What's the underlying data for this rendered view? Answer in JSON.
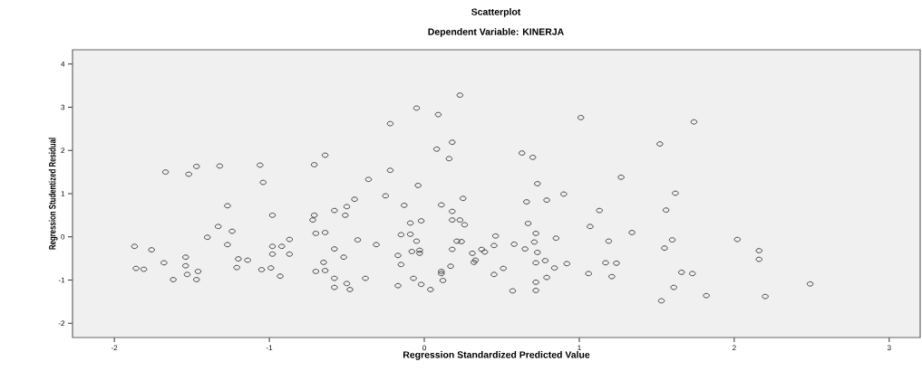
{
  "chart_data": {
    "type": "scatter",
    "title": "Scatterplot",
    "subtitle": "Dependent Variable: KINERJA",
    "xlabel": "Regression Standardized Predicted Value",
    "ylabel": "Regression Studentized Residual",
    "xlim": [
      -2.27,
      3.2
    ],
    "ylim": [
      -2.33,
      4.33
    ],
    "xticks": [
      -2,
      -1,
      0,
      1,
      2,
      3
    ],
    "yticks": [
      -2,
      -1,
      0,
      1,
      2,
      3,
      4
    ],
    "marker": "circle",
    "series": [
      {
        "color": "#333333",
        "x": [
          -1.67,
          -1.52,
          -1.47,
          -1.32,
          -1.06,
          -1.04,
          -1.27,
          -0.98,
          -1.33,
          -1.24,
          -1.4,
          -1.27,
          -1.87,
          -1.76,
          -0.98,
          -0.92,
          -0.87,
          -0.98,
          -0.87,
          -1.54,
          -1.2,
          -1.14,
          -1.68,
          -1.54,
          -1.86,
          -1.81,
          -1.21,
          -1.05,
          -0.99,
          -1.53,
          -1.46,
          -1.62,
          -1.47,
          -0.93,
          0.23,
          -0.05,
          0.09,
          -0.22,
          0.18,
          0.08,
          0.16,
          -0.64,
          -0.71,
          -0.22,
          -0.36,
          -0.04,
          0.63,
          0.7,
          0.73,
          -0.25,
          0.25,
          0.9,
          0.66,
          0.79,
          -0.45,
          -0.58,
          -0.5,
          -0.51,
          -0.71,
          -0.72,
          -0.13,
          0.11,
          0.18,
          0.18,
          0.23,
          0.26,
          -0.02,
          -0.09,
          0.67,
          -0.7,
          -0.64,
          -0.15,
          -0.09,
          0.72,
          -0.43,
          -0.31,
          -0.05,
          0.21,
          0.24,
          0.46,
          0.85,
          -0.58,
          -0.52,
          -0.17,
          -0.08,
          -0.03,
          -0.03,
          0.18,
          0.31,
          0.39,
          0.37,
          0.45,
          0.58,
          0.65,
          0.71,
          0.73,
          0.33,
          0.32,
          -0.65,
          -0.7,
          -0.64,
          -0.15,
          0.17,
          0.11,
          0.11,
          0.72,
          0.78,
          0.84,
          0.92,
          0.51,
          0.45,
          0.79,
          0.72,
          -0.58,
          -0.5,
          -0.58,
          -0.48,
          -0.38,
          -0.07,
          0.12,
          -0.17,
          -0.02,
          0.04,
          0.57,
          0.72,
          1.01,
          1.74,
          1.52,
          1.27,
          1.62,
          1.13,
          1.56,
          1.07,
          1.34,
          1.19,
          1.6,
          2.02,
          1.55,
          2.16,
          2.16,
          1.17,
          1.24,
          1.06,
          1.21,
          1.66,
          1.73,
          1.61,
          1.82,
          1.53,
          2.2,
          2.49
        ],
        "values": [
          1.5,
          1.45,
          1.63,
          1.64,
          1.66,
          1.26,
          0.72,
          0.5,
          0.24,
          0.13,
          -0.01,
          -0.18,
          -0.22,
          -0.3,
          -0.22,
          -0.22,
          -0.06,
          -0.4,
          -0.4,
          -0.47,
          -0.51,
          -0.54,
          -0.6,
          -0.67,
          -0.73,
          -0.75,
          -0.71,
          -0.76,
          -0.72,
          -0.87,
          -0.8,
          -0.99,
          -0.99,
          -0.91,
          3.28,
          2.98,
          2.83,
          2.62,
          2.19,
          2.03,
          1.81,
          1.89,
          1.67,
          1.54,
          1.33,
          1.19,
          1.94,
          1.84,
          1.23,
          0.95,
          0.89,
          0.99,
          0.81,
          0.85,
          0.87,
          0.61,
          0.7,
          0.5,
          0.5,
          0.39,
          0.73,
          0.74,
          0.59,
          0.39,
          0.39,
          0.28,
          0.37,
          0.32,
          0.31,
          0.08,
          0.1,
          0.05,
          0.06,
          0.08,
          -0.07,
          -0.18,
          -0.1,
          -0.1,
          -0.11,
          0.02,
          -0.03,
          -0.28,
          -0.47,
          -0.43,
          -0.34,
          -0.31,
          -0.38,
          -0.29,
          -0.38,
          -0.35,
          -0.29,
          -0.2,
          -0.17,
          -0.28,
          -0.12,
          -0.36,
          -0.54,
          -0.59,
          -0.59,
          -0.8,
          -0.78,
          -0.64,
          -0.68,
          -0.8,
          -0.85,
          -0.6,
          -0.55,
          -0.72,
          -0.62,
          -0.73,
          -0.87,
          -0.94,
          -1.05,
          -0.96,
          -1.08,
          -1.17,
          -1.22,
          -0.96,
          -0.96,
          -1.01,
          -1.13,
          -1.1,
          -1.22,
          -1.25,
          -1.24,
          2.76,
          2.66,
          2.15,
          1.38,
          1.01,
          0.61,
          0.62,
          0.24,
          0.1,
          -0.1,
          -0.07,
          -0.06,
          -0.26,
          -0.32,
          -0.52,
          -0.6,
          -0.61,
          -0.85,
          -0.92,
          -0.82,
          -0.85,
          -1.17,
          -1.36,
          -1.48,
          -1.38,
          -1.09
        ]
      }
    ]
  }
}
